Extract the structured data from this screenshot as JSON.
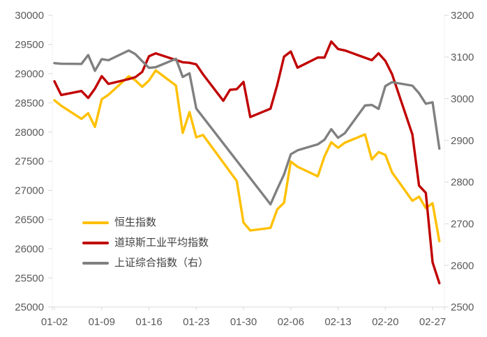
{
  "background_color": "#ffffff",
  "axis_line_color": "#d9d9d9",
  "tick_label_color": "#595959",
  "legend_text_color": "#404040",
  "chart_data": {
    "type": "line",
    "title": "",
    "grid": false,
    "legend_position": "inside-lower-left",
    "x_tick_labels": [
      "01-02",
      "01-09",
      "01-16",
      "01-23",
      "01-30",
      "02-06",
      "02-13",
      "02-20",
      "02-27"
    ],
    "y_left_axis": {
      "min": 25000,
      "max": 30000,
      "step": 500
    },
    "y_right_axis": {
      "min": 2500,
      "max": 3200,
      "step": 100
    },
    "y_left_tick_labels": [
      "25000",
      "25500",
      "26000",
      "26500",
      "27000",
      "27500",
      "28000",
      "28500",
      "29000",
      "29500",
      "30000"
    ],
    "y_right_tick_labels": [
      "2500",
      "2600",
      "2700",
      "2800",
      "2900",
      "3000",
      "3100",
      "3200"
    ],
    "series": [
      {
        "name": "恒生指数",
        "color": "#FFC000",
        "axis": "left",
        "data": [
          [
            "01-02",
            28543
          ],
          [
            "01-03",
            28451
          ],
          [
            "01-06",
            28226
          ],
          [
            "01-07",
            28322
          ],
          [
            "01-08",
            28088
          ],
          [
            "01-09",
            28561
          ],
          [
            "01-10",
            28638
          ],
          [
            "01-13",
            28955
          ],
          [
            "01-14",
            28885
          ],
          [
            "01-15",
            28774
          ],
          [
            "01-16",
            28883
          ],
          [
            "01-17",
            29056
          ],
          [
            "01-20",
            28796
          ],
          [
            "01-21",
            27985
          ],
          [
            "01-22",
            28341
          ],
          [
            "01-23",
            27909
          ],
          [
            "01-24",
            27950
          ],
          [
            "01-29",
            27161
          ],
          [
            "01-30",
            26449
          ],
          [
            "01-31",
            26313
          ],
          [
            "02-03",
            26357
          ],
          [
            "02-04",
            26676
          ],
          [
            "02-05",
            26787
          ],
          [
            "02-06",
            27494
          ],
          [
            "02-07",
            27404
          ],
          [
            "02-10",
            27241
          ],
          [
            "02-11",
            27584
          ],
          [
            "02-12",
            27824
          ],
          [
            "02-13",
            27730
          ],
          [
            "02-14",
            27816
          ],
          [
            "02-17",
            27960
          ],
          [
            "02-18",
            27530
          ],
          [
            "02-19",
            27656
          ],
          [
            "02-20",
            27609
          ],
          [
            "02-21",
            27309
          ],
          [
            "02-24",
            26821
          ],
          [
            "02-25",
            26893
          ],
          [
            "02-26",
            26696
          ],
          [
            "02-27",
            26779
          ],
          [
            "02-28",
            26130
          ]
        ]
      },
      {
        "name": "道琼斯工业平均指数",
        "color": "#C00000",
        "axis": "left",
        "data": [
          [
            "01-02",
            28869
          ],
          [
            "01-03",
            28635
          ],
          [
            "01-06",
            28703
          ],
          [
            "01-07",
            28584
          ],
          [
            "01-08",
            28745
          ],
          [
            "01-09",
            28957
          ],
          [
            "01-10",
            28824
          ],
          [
            "01-13",
            28907
          ],
          [
            "01-14",
            28940
          ],
          [
            "01-15",
            29030
          ],
          [
            "01-16",
            29298
          ],
          [
            "01-17",
            29348
          ],
          [
            "01-21",
            29196
          ],
          [
            "01-22",
            29186
          ],
          [
            "01-23",
            29160
          ],
          [
            "01-24",
            28990
          ],
          [
            "01-27",
            28536
          ],
          [
            "01-28",
            28723
          ],
          [
            "01-29",
            28734
          ],
          [
            "01-30",
            28859
          ],
          [
            "01-31",
            28256
          ],
          [
            "02-03",
            28400
          ],
          [
            "02-04",
            28808
          ],
          [
            "02-05",
            29291
          ],
          [
            "02-06",
            29380
          ],
          [
            "02-07",
            29103
          ],
          [
            "02-10",
            29277
          ],
          [
            "02-11",
            29276
          ],
          [
            "02-12",
            29551
          ],
          [
            "02-13",
            29423
          ],
          [
            "02-14",
            29398
          ],
          [
            "02-18",
            29232
          ],
          [
            "02-19",
            29348
          ],
          [
            "02-20",
            29220
          ],
          [
            "02-21",
            28992
          ],
          [
            "02-24",
            27961
          ],
          [
            "02-25",
            27081
          ],
          [
            "02-26",
            26958
          ],
          [
            "02-27",
            25767
          ],
          [
            "02-28",
            25409
          ]
        ]
      },
      {
        "name": "上证综合指数（右）",
        "color": "#808080",
        "axis": "right",
        "data": [
          [
            "01-02",
            3085.2
          ],
          [
            "01-03",
            3083.8
          ],
          [
            "01-06",
            3083.4
          ],
          [
            "01-07",
            3104.8
          ],
          [
            "01-08",
            3066.9
          ],
          [
            "01-09",
            3094.9
          ],
          [
            "01-10",
            3092.3
          ],
          [
            "01-13",
            3115.6
          ],
          [
            "01-14",
            3106.8
          ],
          [
            "01-15",
            3090.0
          ],
          [
            "01-16",
            3074.1
          ],
          [
            "01-17",
            3075.5
          ],
          [
            "01-20",
            3095.8
          ],
          [
            "01-21",
            3052.1
          ],
          [
            "01-22",
            3060.8
          ],
          [
            "01-23",
            2976.5
          ],
          [
            "02-03",
            2746.6
          ],
          [
            "02-04",
            2783.3
          ],
          [
            "02-05",
            2818.1
          ],
          [
            "02-06",
            2866.5
          ],
          [
            "02-07",
            2876.0
          ],
          [
            "02-10",
            2890.5
          ],
          [
            "02-11",
            2901.7
          ],
          [
            "02-12",
            2926.9
          ],
          [
            "02-13",
            2906.1
          ],
          [
            "02-14",
            2917.0
          ],
          [
            "02-17",
            2983.6
          ],
          [
            "02-18",
            2985.0
          ],
          [
            "02-19",
            2975.4
          ],
          [
            "02-20",
            3030.2
          ],
          [
            "02-21",
            3039.7
          ],
          [
            "02-24",
            3031.2
          ],
          [
            "02-25",
            3013.1
          ],
          [
            "02-26",
            2987.9
          ],
          [
            "02-27",
            2991.3
          ],
          [
            "02-28",
            2880.3
          ]
        ]
      }
    ]
  }
}
